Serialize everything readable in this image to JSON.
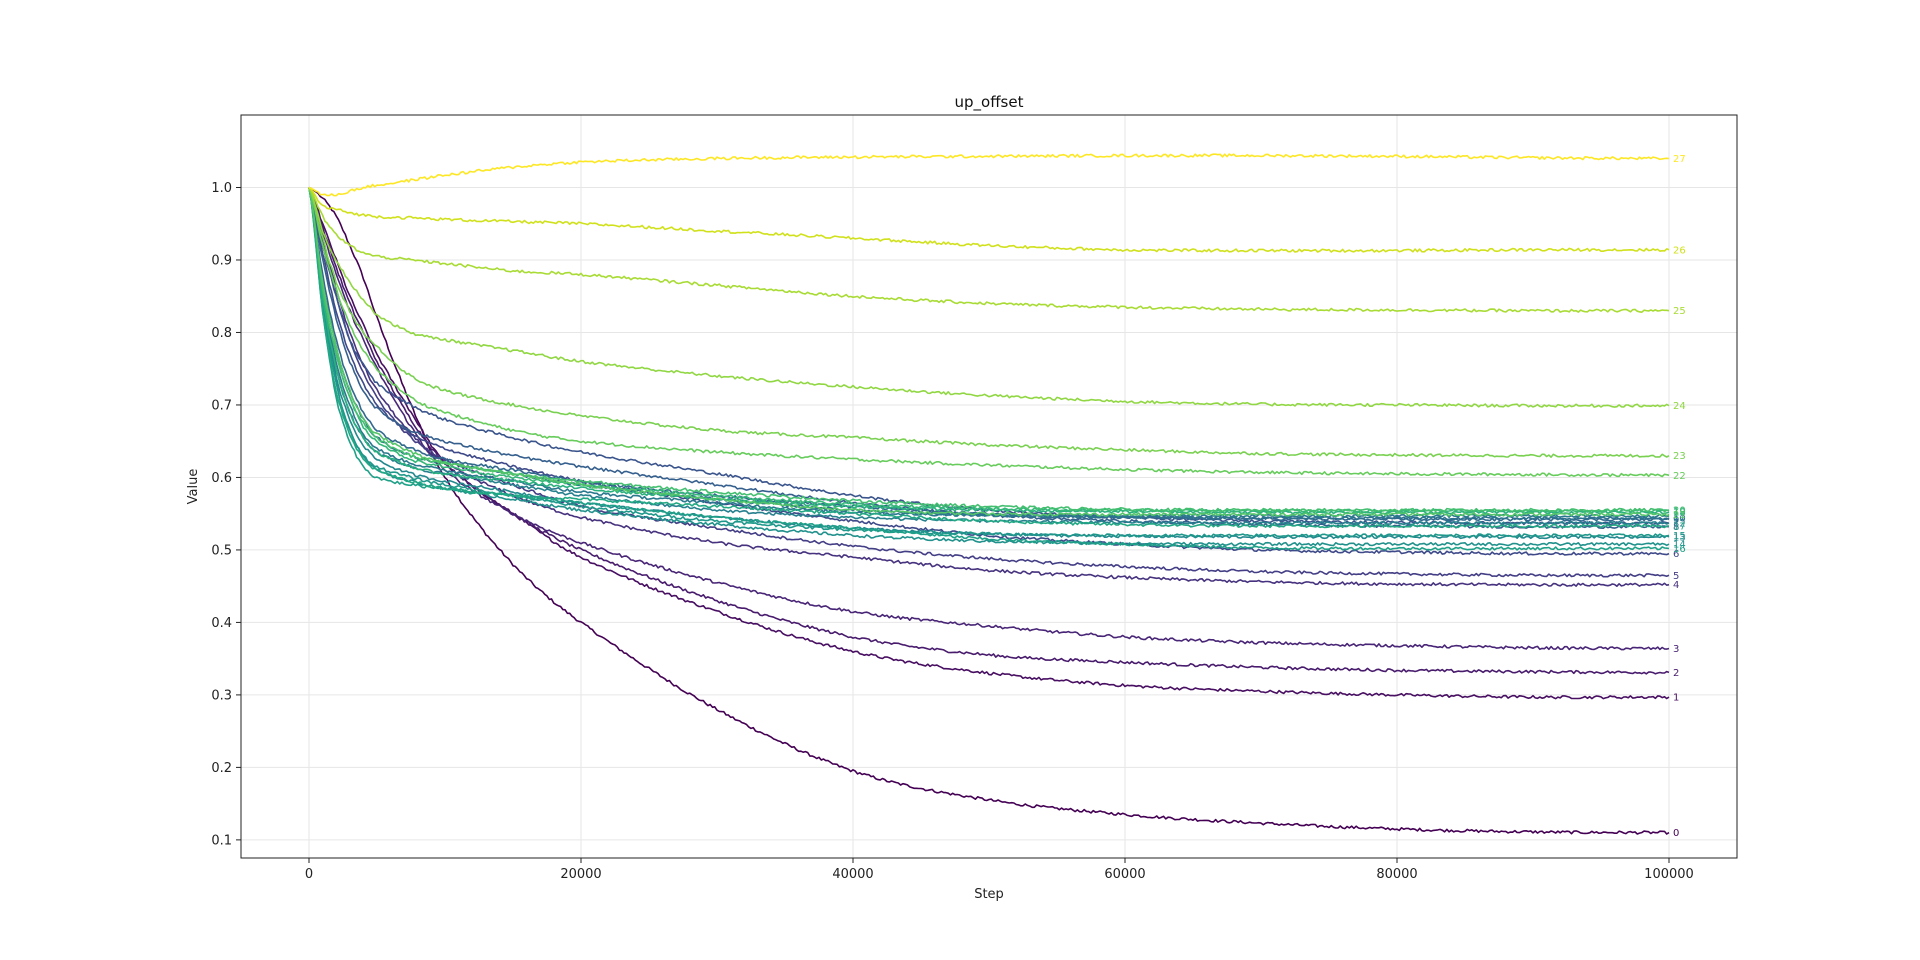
{
  "chart_data": {
    "type": "line",
    "title": "up_offset",
    "xlabel": "Step",
    "ylabel": "Value",
    "xlim": [
      -5000,
      105000
    ],
    "ylim": [
      0.075,
      1.1
    ],
    "xticks": [
      0,
      20000,
      40000,
      60000,
      80000,
      100000
    ],
    "yticks": [
      0.1,
      0.2,
      0.3,
      0.4,
      0.5,
      0.6,
      0.7,
      0.8,
      0.9,
      1.0
    ],
    "xtick_labels": [
      "0",
      "20000",
      "40000",
      "60000",
      "80000",
      "100000"
    ],
    "ytick_labels": [
      "0.1",
      "0.2",
      "0.3",
      "0.4",
      "0.5",
      "0.6",
      "0.7",
      "0.8",
      "0.9",
      "1.0"
    ],
    "grid": true,
    "colormap": "viridis",
    "x": [
      0,
      1000,
      2000,
      3000,
      4000,
      5000,
      7500,
      10000,
      15000,
      20000,
      30000,
      40000,
      50000,
      60000,
      70000,
      80000,
      90000,
      100000
    ],
    "series": [
      {
        "name": "0",
        "color": "#440154",
        "values": [
          1.0,
          0.985,
          0.96,
          0.92,
          0.875,
          0.82,
          0.7,
          0.6,
          0.48,
          0.4,
          0.28,
          0.195,
          0.155,
          0.135,
          0.123,
          0.115,
          0.111,
          0.11
        ]
      },
      {
        "name": "1",
        "color": "#470e61",
        "values": [
          1.0,
          0.95,
          0.9,
          0.85,
          0.81,
          0.77,
          0.69,
          0.62,
          0.55,
          0.49,
          0.415,
          0.36,
          0.33,
          0.313,
          0.305,
          0.3,
          0.297,
          0.297
        ]
      },
      {
        "name": "2",
        "color": "#481b6d",
        "values": [
          1.0,
          0.945,
          0.89,
          0.84,
          0.8,
          0.76,
          0.68,
          0.62,
          0.55,
          0.5,
          0.43,
          0.38,
          0.355,
          0.345,
          0.338,
          0.334,
          0.332,
          0.331
        ]
      },
      {
        "name": "3",
        "color": "#482576",
        "values": [
          1.0,
          0.94,
          0.88,
          0.83,
          0.79,
          0.75,
          0.67,
          0.61,
          0.55,
          0.51,
          0.455,
          0.415,
          0.395,
          0.38,
          0.372,
          0.368,
          0.365,
          0.364
        ]
      },
      {
        "name": "4",
        "color": "#46327e",
        "values": [
          1.0,
          0.93,
          0.86,
          0.8,
          0.755,
          0.72,
          0.66,
          0.62,
          0.575,
          0.545,
          0.51,
          0.49,
          0.472,
          0.462,
          0.456,
          0.453,
          0.452,
          0.452
        ]
      },
      {
        "name": "5",
        "color": "#433e85",
        "values": [
          1.0,
          0.92,
          0.85,
          0.79,
          0.745,
          0.71,
          0.655,
          0.625,
          0.59,
          0.56,
          0.53,
          0.505,
          0.488,
          0.477,
          0.47,
          0.467,
          0.465,
          0.465
        ]
      },
      {
        "name": "6",
        "color": "#3e4989",
        "values": [
          1.0,
          0.91,
          0.83,
          0.77,
          0.73,
          0.7,
          0.66,
          0.64,
          0.615,
          0.595,
          0.565,
          0.54,
          0.52,
          0.508,
          0.5,
          0.497,
          0.495,
          0.495
        ]
      },
      {
        "name": "7",
        "color": "#3a548c",
        "values": [
          1.0,
          0.92,
          0.85,
          0.79,
          0.755,
          0.73,
          0.7,
          0.68,
          0.655,
          0.635,
          0.605,
          0.575,
          0.555,
          0.545,
          0.54,
          0.538,
          0.537,
          0.537
        ]
      },
      {
        "name": "8",
        "color": "#355f8d",
        "values": [
          1.0,
          0.9,
          0.82,
          0.76,
          0.72,
          0.695,
          0.665,
          0.65,
          0.63,
          0.615,
          0.59,
          0.565,
          0.548,
          0.54,
          0.535,
          0.533,
          0.532,
          0.532
        ]
      },
      {
        "name": "9",
        "color": "#31688e",
        "values": [
          1.0,
          0.88,
          0.79,
          0.73,
          0.69,
          0.665,
          0.64,
          0.625,
          0.61,
          0.595,
          0.575,
          0.56,
          0.55,
          0.545,
          0.543,
          0.542,
          0.542,
          0.542
        ]
      },
      {
        "name": "10",
        "color": "#2d718e",
        "values": [
          1.0,
          0.87,
          0.78,
          0.72,
          0.68,
          0.655,
          0.63,
          0.62,
          0.605,
          0.59,
          0.57,
          0.555,
          0.548,
          0.545,
          0.544,
          0.544,
          0.544,
          0.544
        ]
      },
      {
        "name": "11",
        "color": "#2a788e",
        "values": [
          1.0,
          0.86,
          0.76,
          0.7,
          0.66,
          0.64,
          0.62,
          0.61,
          0.595,
          0.58,
          0.565,
          0.552,
          0.548,
          0.547,
          0.547,
          0.547,
          0.547,
          0.547
        ]
      },
      {
        "name": "12",
        "color": "#27808e",
        "values": [
          1.0,
          0.85,
          0.75,
          0.69,
          0.655,
          0.635,
          0.615,
          0.605,
          0.59,
          0.575,
          0.555,
          0.545,
          0.54,
          0.538,
          0.537,
          0.537,
          0.537,
          0.537
        ]
      },
      {
        "name": "13",
        "color": "#23888e",
        "values": [
          1.0,
          0.85,
          0.74,
          0.68,
          0.645,
          0.625,
          0.605,
          0.595,
          0.58,
          0.565,
          0.545,
          0.53,
          0.522,
          0.519,
          0.518,
          0.518,
          0.518,
          0.518
        ]
      },
      {
        "name": "14",
        "color": "#21918c",
        "values": [
          1.0,
          0.84,
          0.73,
          0.665,
          0.63,
          0.61,
          0.595,
          0.585,
          0.57,
          0.555,
          0.535,
          0.52,
          0.512,
          0.509,
          0.508,
          0.508,
          0.508,
          0.508
        ]
      },
      {
        "name": "15",
        "color": "#1f988b",
        "values": [
          1.0,
          0.84,
          0.73,
          0.665,
          0.63,
          0.615,
          0.6,
          0.59,
          0.575,
          0.56,
          0.54,
          0.528,
          0.522,
          0.52,
          0.52,
          0.52,
          0.52,
          0.52
        ]
      },
      {
        "name": "16",
        "color": "#1fa088",
        "values": [
          1.0,
          0.83,
          0.71,
          0.65,
          0.615,
          0.6,
          0.59,
          0.585,
          0.575,
          0.565,
          0.545,
          0.53,
          0.515,
          0.508,
          0.503,
          0.502,
          0.502,
          0.502
        ]
      },
      {
        "name": "17",
        "color": "#22a884",
        "values": [
          1.0,
          0.83,
          0.72,
          0.66,
          0.625,
          0.61,
          0.595,
          0.585,
          0.575,
          0.57,
          0.56,
          0.55,
          0.54,
          0.535,
          0.533,
          0.533,
          0.533,
          0.533
        ]
      },
      {
        "name": "18",
        "color": "#2ab07f",
        "values": [
          1.0,
          0.85,
          0.75,
          0.69,
          0.655,
          0.635,
          0.615,
          0.605,
          0.595,
          0.585,
          0.57,
          0.56,
          0.555,
          0.553,
          0.552,
          0.552,
          0.552,
          0.552
        ]
      },
      {
        "name": "19",
        "color": "#35b779",
        "values": [
          1.0,
          0.86,
          0.77,
          0.71,
          0.67,
          0.65,
          0.625,
          0.615,
          0.6,
          0.59,
          0.575,
          0.563,
          0.557,
          0.555,
          0.554,
          0.554,
          0.554,
          0.554
        ]
      },
      {
        "name": "20",
        "color": "#44bf70",
        "values": [
          1.0,
          0.86,
          0.77,
          0.71,
          0.675,
          0.655,
          0.63,
          0.62,
          0.605,
          0.595,
          0.58,
          0.568,
          0.56,
          0.556,
          0.555,
          0.555,
          0.555,
          0.555
        ]
      },
      {
        "name": "21",
        "color": "#54c568",
        "values": [
          1.0,
          0.87,
          0.78,
          0.72,
          0.68,
          0.66,
          0.635,
          0.62,
          0.605,
          0.59,
          0.57,
          0.555,
          0.55,
          0.549,
          0.549,
          0.549,
          0.549,
          0.549
        ]
      },
      {
        "name": "22",
        "color": "#67cc5c",
        "values": [
          1.0,
          0.92,
          0.86,
          0.81,
          0.775,
          0.75,
          0.71,
          0.69,
          0.665,
          0.65,
          0.635,
          0.625,
          0.617,
          0.611,
          0.607,
          0.605,
          0.604,
          0.603
        ]
      },
      {
        "name": "23",
        "color": "#7ad151",
        "values": [
          1.0,
          0.93,
          0.87,
          0.83,
          0.8,
          0.78,
          0.74,
          0.72,
          0.7,
          0.685,
          0.665,
          0.655,
          0.645,
          0.638,
          0.633,
          0.631,
          0.63,
          0.63
        ]
      },
      {
        "name": "24",
        "color": "#90d743",
        "values": [
          1.0,
          0.94,
          0.9,
          0.87,
          0.845,
          0.825,
          0.8,
          0.79,
          0.775,
          0.76,
          0.74,
          0.725,
          0.713,
          0.705,
          0.701,
          0.7,
          0.699,
          0.699
        ]
      },
      {
        "name": "25",
        "color": "#a8db34",
        "values": [
          1.0,
          0.96,
          0.935,
          0.92,
          0.91,
          0.905,
          0.9,
          0.895,
          0.885,
          0.88,
          0.865,
          0.85,
          0.84,
          0.835,
          0.832,
          0.831,
          0.83,
          0.83
        ]
      },
      {
        "name": "26",
        "color": "#d0e11c",
        "values": [
          1.0,
          0.975,
          0.97,
          0.965,
          0.962,
          0.96,
          0.958,
          0.956,
          0.953,
          0.95,
          0.94,
          0.93,
          0.92,
          0.914,
          0.913,
          0.913,
          0.914,
          0.914
        ]
      },
      {
        "name": "27",
        "color": "#fde725",
        "values": [
          1.0,
          0.99,
          0.99,
          0.995,
          1.0,
          1.003,
          1.01,
          1.017,
          1.028,
          1.035,
          1.04,
          1.042,
          1.043,
          1.044,
          1.044,
          1.043,
          1.041,
          1.04
        ]
      }
    ]
  }
}
